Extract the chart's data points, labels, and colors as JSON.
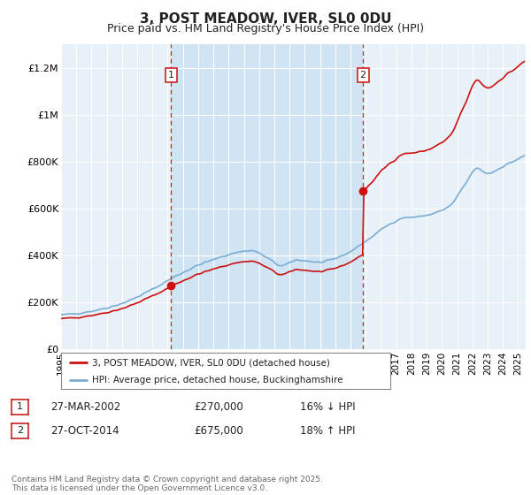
{
  "title": "3, POST MEADOW, IVER, SL0 0DU",
  "subtitle": "Price paid vs. HM Land Registry's House Price Index (HPI)",
  "ylabel_ticks": [
    "£0",
    "£200K",
    "£400K",
    "£600K",
    "£800K",
    "£1M",
    "£1.2M"
  ],
  "ytick_vals": [
    0,
    200000,
    400000,
    600000,
    800000,
    1000000,
    1200000
  ],
  "ylim": [
    0,
    1300000
  ],
  "xlim_start": 1995.0,
  "xlim_end": 2025.5,
  "chart_bg": "#e8f0f8",
  "shade_bg": "#d0e4f4",
  "grid_color": "#ffffff",
  "sale1_year": 2002.23,
  "sale1_price": 270000,
  "sale1_label": "1",
  "sale2_year": 2014.82,
  "sale2_price": 675000,
  "sale2_label": "2",
  "vline_color": "#cc2222",
  "red_line_color": "#cc1111",
  "blue_line_color": "#7aadd4",
  "legend_label_red": "3, POST MEADOW, IVER, SL0 0DU (detached house)",
  "legend_label_blue": "HPI: Average price, detached house, Buckinghamshire",
  "table_row1": [
    "1",
    "27-MAR-2002",
    "£270,000",
    "16% ↓ HPI"
  ],
  "table_row2": [
    "2",
    "27-OCT-2014",
    "£675,000",
    "18% ↑ HPI"
  ],
  "footer": "Contains HM Land Registry data © Crown copyright and database right 2025.\nThis data is licensed under the Open Government Licence v3.0."
}
